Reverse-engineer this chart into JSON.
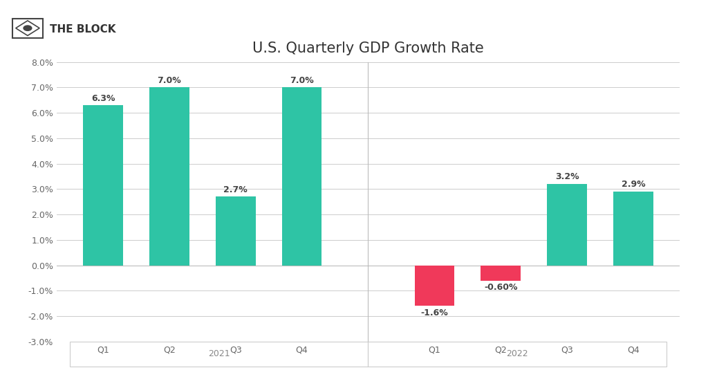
{
  "title": "U.S. Quarterly GDP Growth Rate",
  "watermark": "THE BLOCK",
  "categories_2021": [
    "Q1",
    "Q2",
    "Q3",
    "Q4"
  ],
  "categories_2022": [
    "Q1",
    "Q2",
    "Q3",
    "Q4"
  ],
  "values_2021": [
    6.3,
    7.0,
    2.7,
    7.0
  ],
  "values_2022": [
    -1.6,
    -0.6,
    3.2,
    2.9
  ],
  "labels_2021": [
    "6.3%",
    "7.0%",
    "2.7%",
    "7.0%"
  ],
  "labels_2022": [
    "-1.6%",
    "-0.60%",
    "3.2%",
    "2.9%"
  ],
  "color_positive": "#2EC4A5",
  "color_negative": "#F0395A",
  "year_label_2021": "2021",
  "year_label_2022": "2022",
  "ylim_min": -3.0,
  "ylim_max": 8.0,
  "ytick_step": 1.0,
  "background_color": "#ffffff",
  "grid_color": "#cccccc",
  "title_fontsize": 15,
  "label_fontsize": 9,
  "tick_fontsize": 9,
  "year_fontsize": 9,
  "bar_width": 0.6
}
